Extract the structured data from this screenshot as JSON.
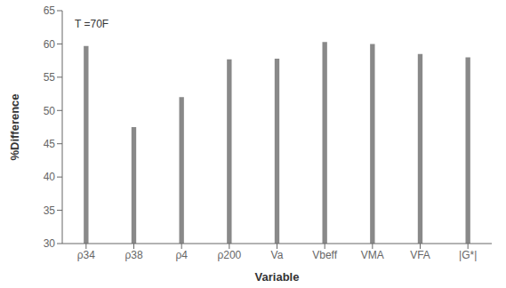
{
  "chart_data": {
    "type": "bar",
    "annotation": "T =70F",
    "xlabel": "Variable",
    "ylabel": "%Difference",
    "categories": [
      "ρ34",
      "ρ38",
      "ρ4",
      "ρ200",
      "Va",
      "Vbeff",
      "VMA",
      "VFA",
      "|G*|"
    ],
    "values": [
      59.7,
      47.5,
      52.0,
      57.7,
      57.8,
      60.3,
      60.0,
      58.5,
      58.0
    ],
    "color": "#898989",
    "ylim": [
      30,
      65
    ],
    "yticks": [
      30,
      35,
      40,
      45,
      50,
      55,
      60,
      65
    ],
    "grid": false
  }
}
